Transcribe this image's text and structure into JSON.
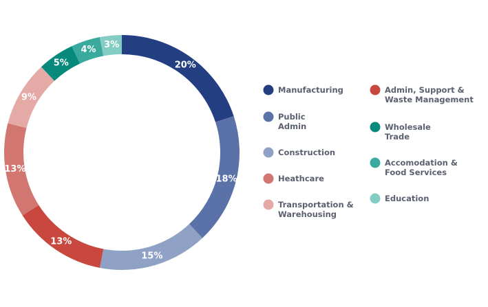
{
  "chart_data": {
    "type": "pie",
    "title": "",
    "legend_position": "right",
    "slices": [
      {
        "label": "Manufacturing",
        "lines": [
          "Manufacturing"
        ],
        "value": 20,
        "display": "20%",
        "color": "#233f82"
      },
      {
        "label": "Public Admin",
        "lines": [
          "Public",
          "Admin"
        ],
        "value": 18,
        "display": "18%",
        "color": "#5a72a8"
      },
      {
        "label": "Construction",
        "lines": [
          "Construction"
        ],
        "value": 15,
        "display": "15%",
        "color": "#8fa1c4"
      },
      {
        "label": "Admin, Support & Waste Management",
        "lines": [
          "Admin, Support &",
          "Waste Management"
        ],
        "value": 13,
        "display": "13%",
        "color": "#c8473e"
      },
      {
        "label": "Heathcare",
        "lines": [
          "Heathcare"
        ],
        "value": 13,
        "display": "13%",
        "color": "#d27671"
      },
      {
        "label": "Transportation & Warehousing",
        "lines": [
          "Transportation &",
          "Warehousing"
        ],
        "value": 9,
        "display": "9%",
        "color": "#e5a9a6"
      },
      {
        "label": "Wholesale Trade",
        "lines": [
          "Wholesale",
          "Trade"
        ],
        "value": 5,
        "display": "5%",
        "color": "#078a7b"
      },
      {
        "label": "Accomodation & Food Services",
        "lines": [
          "Accomodation &",
          "Food Services"
        ],
        "value": 4,
        "display": "4%",
        "color": "#3aa99e"
      },
      {
        "label": "Education",
        "lines": [
          "Education"
        ],
        "value": 3,
        "display": "3%",
        "color": "#84cdc5"
      }
    ],
    "legend_columns": [
      [
        "Manufacturing",
        "Public Admin",
        "Construction",
        "Heathcare",
        "Transportation & Warehousing"
      ],
      [
        "Admin, Support & Waste Management",
        "Wholesale Trade",
        "Accomodation & Food Services",
        "Education"
      ]
    ]
  }
}
